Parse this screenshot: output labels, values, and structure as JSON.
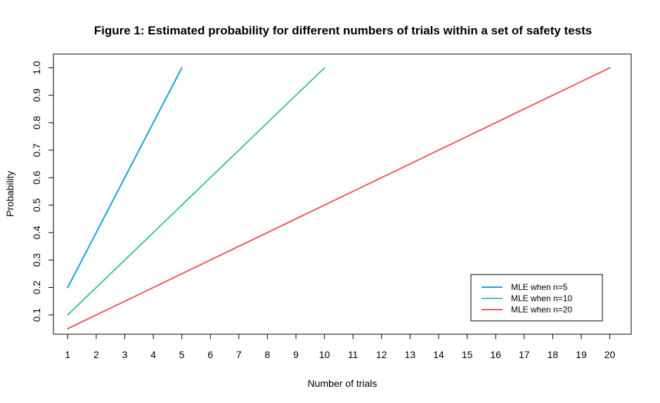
{
  "chart_data": {
    "type": "line",
    "title": "Figure 1: Estimated probability for different numbers of trials within a set of safety tests",
    "xlabel": "Number of trials",
    "ylabel": "Probability",
    "xlim": [
      0.5,
      20.75
    ],
    "ylim": [
      0.03,
      1.05
    ],
    "x_ticks": [
      1,
      2,
      3,
      4,
      5,
      6,
      7,
      8,
      9,
      10,
      11,
      12,
      13,
      14,
      15,
      16,
      17,
      18,
      19,
      20
    ],
    "y_ticks": [
      "0.1",
      "0.2",
      "0.3",
      "0.4",
      "0.5",
      "0.6",
      "0.7",
      "0.8",
      "0.9",
      "1.0"
    ],
    "grid": false,
    "legend_position": "bottom-right",
    "series": [
      {
        "name": "MLE when n=5",
        "color": "#0ea5d9",
        "x": [
          1,
          2,
          3,
          4,
          5
        ],
        "y": [
          0.2,
          0.4,
          0.6,
          0.8,
          1.0
        ]
      },
      {
        "name": "MLE when n=10",
        "color": "#3fc6a0",
        "x": [
          1,
          2,
          3,
          4,
          5,
          6,
          7,
          8,
          9,
          10
        ],
        "y": [
          0.1,
          0.2,
          0.3,
          0.4,
          0.5,
          0.6,
          0.7,
          0.8,
          0.9,
          1.0
        ]
      },
      {
        "name": "MLE when n=20",
        "color": "#f0585c",
        "x": [
          1,
          2,
          3,
          4,
          5,
          6,
          7,
          8,
          9,
          10,
          11,
          12,
          13,
          14,
          15,
          16,
          17,
          18,
          19,
          20
        ],
        "y": [
          0.05,
          0.1,
          0.15,
          0.2,
          0.25,
          0.3,
          0.35,
          0.4,
          0.45,
          0.5,
          0.55,
          0.6,
          0.65,
          0.7,
          0.75,
          0.8,
          0.85,
          0.9,
          0.95,
          1.0
        ]
      }
    ]
  }
}
